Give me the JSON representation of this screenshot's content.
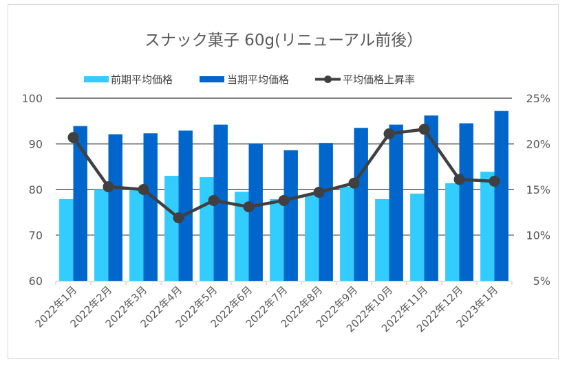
{
  "chart_data": {
    "type": "bar",
    "title": "スナック菓子 60g(リニューアル前後）",
    "categories": [
      "2022年1月",
      "2022年2月",
      "2022年3月",
      "2022年4月",
      "2022年5月",
      "2022年6月",
      "2022年7月",
      "2022年8月",
      "2022年9月",
      "2022年10月",
      "2022年11月",
      "2022年12月",
      "2023年1月"
    ],
    "series": [
      {
        "name": "前期平均価格",
        "type": "bar",
        "axis": "left",
        "color": "#33CCFF",
        "values": [
          77.9,
          80.0,
          80.0,
          83.0,
          82.7,
          79.5,
          77.9,
          78.9,
          80.6,
          77.9,
          79.1,
          81.4,
          83.9
        ]
      },
      {
        "name": "当期平均価格",
        "type": "bar",
        "axis": "left",
        "color": "#0066CC",
        "values": [
          93.9,
          92.1,
          92.3,
          92.9,
          94.2,
          90.0,
          88.6,
          90.2,
          93.5,
          94.2,
          96.2,
          94.5,
          97.2
        ]
      },
      {
        "name": "平均価格上昇率",
        "type": "line",
        "axis": "right",
        "color": "#404040",
        "values": [
          20.7,
          15.3,
          15.0,
          11.9,
          13.8,
          13.1,
          13.8,
          14.7,
          15.7,
          21.1,
          21.6,
          16.1,
          15.9
        ]
      }
    ],
    "y_left": {
      "ylim": [
        60,
        100
      ],
      "ticks": [
        60,
        70,
        80,
        90,
        100
      ],
      "tick_labels": [
        "60",
        "70",
        "80",
        "90",
        "100"
      ]
    },
    "y_right": {
      "ylim": [
        5,
        25
      ],
      "ticks": [
        5,
        10,
        15,
        20,
        25
      ],
      "tick_labels": [
        "5%",
        "10%",
        "15%",
        "20%",
        "25%"
      ]
    },
    "xlabel": "",
    "ylabel": "",
    "grid": true,
    "legend": "top"
  }
}
